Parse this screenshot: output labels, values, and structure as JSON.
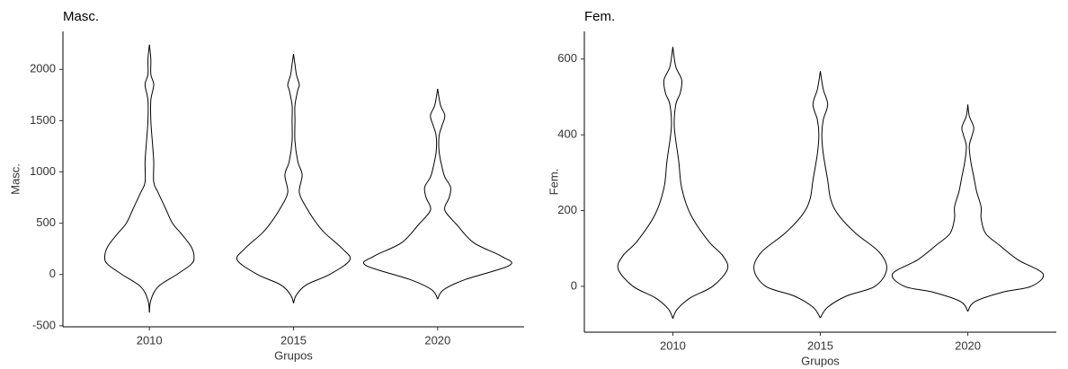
{
  "chart_data": [
    {
      "type": "violin",
      "title": "Masc.",
      "xlabel": "Grupos",
      "ylabel": "Masc.",
      "categories": [
        "2010",
        "2015",
        "2020"
      ],
      "ylim": [
        -510,
        2370
      ],
      "yticks": [
        -500,
        0,
        500,
        1000,
        1500,
        2000
      ],
      "color": "#000000",
      "violins": [
        {
          "y": [
            -370,
            -250,
            -120,
            0,
            100,
            170,
            270,
            400,
            500,
            650,
            800,
            900,
            1100,
            1300,
            1500,
            1700,
            1850,
            1950,
            2100,
            2240
          ],
          "width": [
            0,
            0.01,
            0.06,
            0.19,
            0.29,
            0.31,
            0.29,
            0.22,
            0.16,
            0.11,
            0.06,
            0.03,
            0.03,
            0.02,
            0.01,
            0.01,
            0.03,
            0.01,
            0.01,
            0
          ]
        },
        {
          "y": [
            -280,
            -200,
            -100,
            0,
            140,
            250,
            400,
            500,
            650,
            800,
            970,
            1100,
            1300,
            1500,
            1650,
            1800,
            1850,
            1950,
            2050,
            2150
          ],
          "width": [
            0,
            0.02,
            0.09,
            0.25,
            0.39,
            0.34,
            0.22,
            0.16,
            0.09,
            0.04,
            0.06,
            0.03,
            0.01,
            0.01,
            0.01,
            0.03,
            0.04,
            0.02,
            0.01,
            0
          ]
        },
        {
          "y": [
            -240,
            -150,
            -50,
            90,
            180,
            310,
            490,
            600,
            660,
            750,
            850,
            950,
            1050,
            1200,
            1350,
            1450,
            1550,
            1650,
            1810
          ],
          "width": [
            0,
            0.04,
            0.19,
            0.5,
            0.44,
            0.25,
            0.13,
            0.06,
            0.05,
            0.08,
            0.09,
            0.05,
            0.03,
            0.01,
            0.01,
            0.03,
            0.05,
            0.02,
            0
          ]
        }
      ]
    },
    {
      "type": "violin",
      "title": "Fem.",
      "xlabel": "Grupos",
      "ylabel": "Fem.",
      "categories": [
        "2010",
        "2015",
        "2020"
      ],
      "ylim": [
        -121,
        673
      ],
      "yticks": [
        0,
        200,
        400,
        600
      ],
      "color": "#000000",
      "violins": [
        {
          "y": [
            -85,
            -60,
            -30,
            0,
            45,
            80,
            120,
            190,
            260,
            330,
            420,
            480,
            510,
            545,
            580,
            632
          ],
          "width": [
            0,
            0.03,
            0.12,
            0.27,
            0.37,
            0.34,
            0.24,
            0.12,
            0.06,
            0.04,
            0.01,
            0.02,
            0.05,
            0.06,
            0.02,
            0
          ]
        },
        {
          "y": [
            -83,
            -55,
            -25,
            0,
            45,
            90,
            140,
            190,
            230,
            280,
            350,
            400,
            440,
            480,
            520,
            568
          ],
          "width": [
            0,
            0.05,
            0.18,
            0.37,
            0.45,
            0.4,
            0.24,
            0.12,
            0.07,
            0.05,
            0.02,
            0.01,
            0.02,
            0.05,
            0.02,
            0
          ]
        },
        {
          "y": [
            -66,
            -40,
            -15,
            0,
            33,
            70,
            110,
            140,
            180,
            210,
            250,
            290,
            330,
            370,
            400,
            420,
            450,
            480
          ],
          "width": [
            0,
            0.05,
            0.24,
            0.43,
            0.51,
            0.34,
            0.21,
            0.12,
            0.09,
            0.09,
            0.06,
            0.04,
            0.02,
            0.01,
            0.03,
            0.04,
            0.01,
            0
          ]
        }
      ]
    }
  ]
}
